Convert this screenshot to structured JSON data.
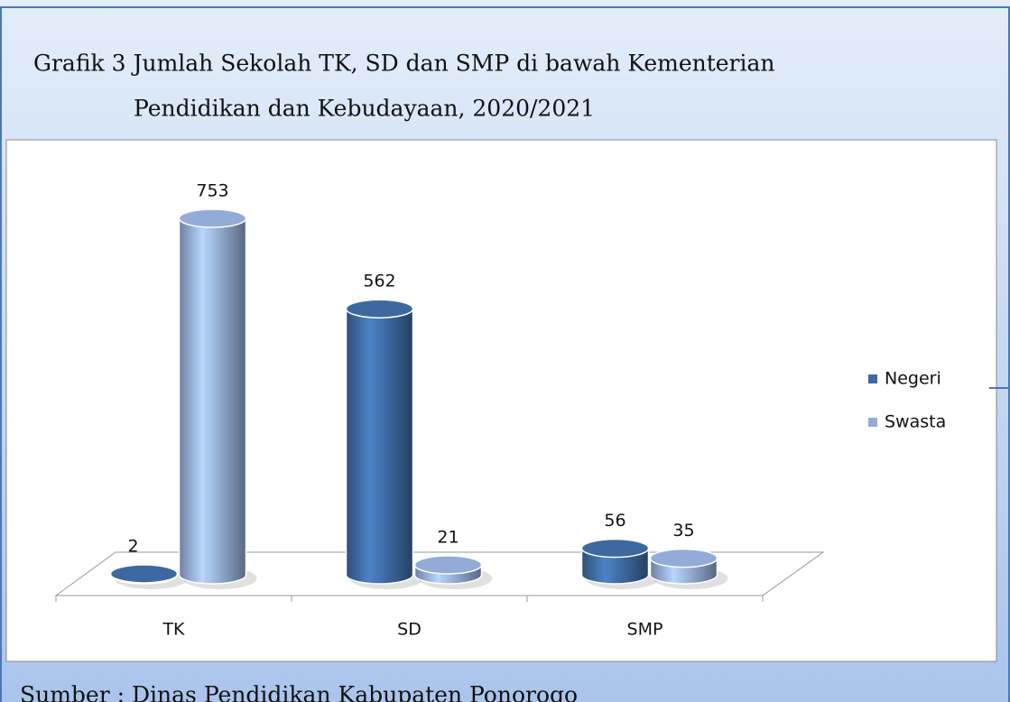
{
  "chart_data": {
    "type": "bar",
    "title": [
      "Grafik 3 Jumlah Sekolah TK, SD dan SMP di bawah  Kementerian",
      "Pendidikan dan Kebudayaan, 2020/2021"
    ],
    "categories": [
      "TK",
      "SD",
      "SMP"
    ],
    "series": [
      {
        "name": "Negeri",
        "color": "#3d69a0",
        "values": [
          2,
          562,
          56
        ]
      },
      {
        "name": "Swasta",
        "color": "#93abd8",
        "values": [
          753,
          21,
          35
        ]
      }
    ],
    "legend": "right",
    "source": "Sumber : Dinas Pendidikan Kabupaten Ponorogo"
  }
}
